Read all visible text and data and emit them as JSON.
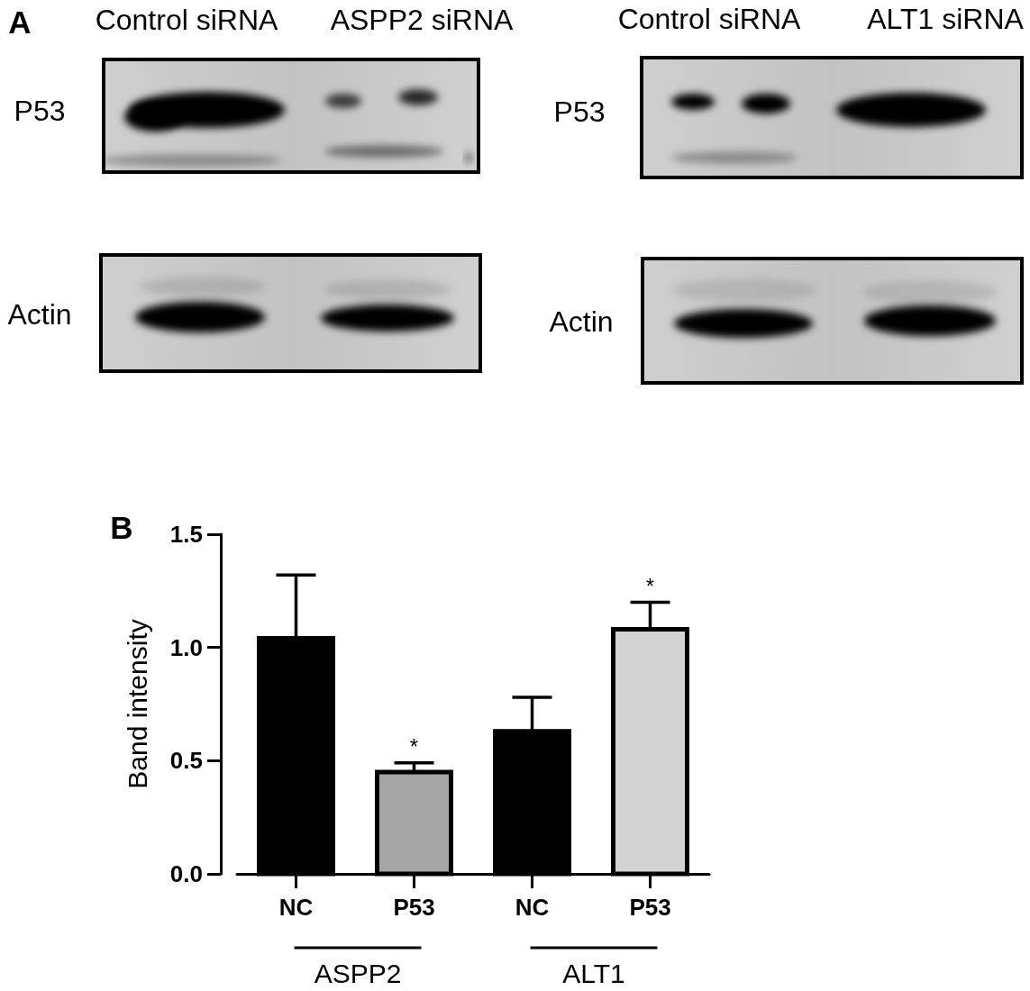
{
  "chart_data": [
    {
      "type": "other",
      "annotations": [
        "A",
        "Control siRNA",
        "ASPP2 siRNA",
        "Control siRNA",
        "ALT1 siRNA",
        "P53",
        "Actin",
        "P53",
        "Actin"
      ]
    },
    {
      "type": "bar",
      "ylabel": "Band intensity",
      "categories": [
        "NC",
        "P53",
        "NC",
        "P53"
      ],
      "values": [
        1.04,
        0.45,
        0.63,
        1.08
      ],
      "colors": [
        "#000000",
        "#a5a5a5",
        "#000000",
        "#d3d3d3"
      ],
      "errors": [
        [
          1.04,
          1.32
        ],
        [
          0.45,
          0.49
        ],
        [
          0.63,
          0.78
        ],
        [
          1.08,
          1.2
        ]
      ],
      "ylim": [
        0,
        1.5
      ],
      "yticks": [
        {
          "value": 0,
          "label": "0.0"
        },
        0.5,
        {
          "value": 1,
          "label": "1.0"
        },
        1.5
      ],
      "annotations": [
        "B",
        "*",
        "*",
        "ASPP2",
        "ALT1"
      ]
    }
  ]
}
